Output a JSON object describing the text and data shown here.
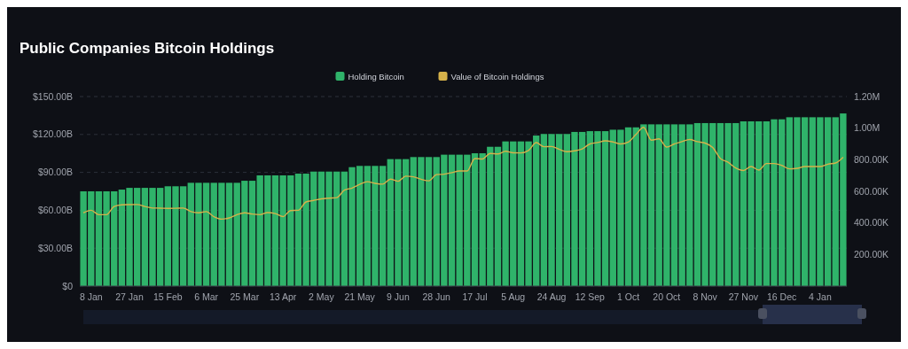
{
  "chart_data": {
    "type": "bar",
    "title": "Public Companies Bitcoin Holdings",
    "categories": [
      null,
      "8 Jan",
      null,
      null,
      null,
      null,
      "27 Jan",
      null,
      null,
      null,
      null,
      "15 Feb",
      null,
      null,
      null,
      null,
      "6 Mar",
      null,
      null,
      null,
      null,
      "25 Mar",
      null,
      null,
      null,
      null,
      "13 Apr",
      null,
      null,
      null,
      null,
      "2 May",
      null,
      null,
      null,
      null,
      "21 May",
      null,
      null,
      null,
      null,
      "9 Jun",
      null,
      null,
      null,
      null,
      "28 Jun",
      null,
      null,
      null,
      null,
      "17 Jul",
      null,
      null,
      null,
      null,
      "5 Aug",
      null,
      null,
      null,
      null,
      "24 Aug",
      null,
      null,
      null,
      null,
      "12 Sep",
      null,
      null,
      null,
      null,
      "1 Oct",
      null,
      null,
      null,
      null,
      "20 Oct",
      null,
      null,
      null,
      null,
      "8 Nov",
      null,
      null,
      null,
      null,
      "27 Nov",
      null,
      null,
      null,
      null,
      "16 Dec",
      null,
      null,
      null,
      null,
      "4 Jan",
      null,
      null,
      null
    ],
    "series": [
      {
        "name": "Holding Bitcoin",
        "color": "#2fb36a",
        "axis": "y2",
        "values": [
          600000,
          600000,
          600000,
          600000,
          600000,
          611000,
          622000,
          622000,
          622000,
          622000,
          622000,
          632000,
          632000,
          632000,
          654000,
          654000,
          654000,
          654000,
          654000,
          654000,
          654000,
          667000,
          667000,
          701000,
          701000,
          701000,
          701000,
          701000,
          712000,
          712000,
          725000,
          725000,
          725000,
          725000,
          725000,
          753000,
          761000,
          761000,
          761000,
          761000,
          804000,
          804000,
          804000,
          817000,
          817000,
          817000,
          817000,
          832000,
          832000,
          832000,
          832000,
          841000,
          841000,
          882000,
          882000,
          916000,
          916000,
          916000,
          916000,
          953000,
          963000,
          963000,
          963000,
          963000,
          976000,
          976000,
          981000,
          981000,
          981000,
          990000,
          990000,
          1005000,
          1005000,
          1024000,
          1024000,
          1024000,
          1024000,
          1024000,
          1024000,
          1024000,
          1032000,
          1032000,
          1032000,
          1032000,
          1032000,
          1032000,
          1043000,
          1043000,
          1043000,
          1043000,
          1056000,
          1056000,
          1069000,
          1069000,
          1069000,
          1069000,
          1069000,
          1069000,
          1069000,
          1093000
        ]
      },
      {
        "name": "Value of Bitcoin Holdings",
        "type": "line",
        "color": "#d6b24a",
        "values": [
          58,
          60,
          56.5,
          56.5,
          63,
          64.3,
          64.5,
          64.6,
          63,
          61.8,
          61.7,
          61.5,
          61.6,
          61.8,
          59,
          58,
          59,
          55,
          53,
          54,
          56.5,
          58,
          57,
          56.5,
          58.2,
          57.4,
          55,
          59.8,
          60,
          66.6,
          67.8,
          69,
          69.6,
          70,
          75.9,
          77.6,
          80.5,
          82.6,
          81.3,
          80.7,
          84.6,
          83,
          87,
          86.5,
          84.5,
          83.3,
          88.2,
          88.6,
          89.8,
          91.1,
          91.1,
          100.9,
          100.6,
          105,
          104.6,
          106.7,
          105.5,
          105.4,
          107.3,
          113.5,
          110.3,
          110.5,
          108.2,
          106.4,
          107.1,
          108.6,
          112.5,
          113.6,
          115,
          114.1,
          112.5,
          114,
          120,
          125.6,
          115.5,
          116.5,
          110,
          112.5,
          114.3,
          116,
          114.3,
          113.2,
          109.7,
          101,
          98,
          93.5,
          91.5,
          94.6,
          91.8,
          97,
          97,
          95.5,
          92.8,
          93.2,
          94.6,
          94.6,
          94.6,
          96.5,
          97.4,
          102
        ]
      }
    ],
    "ylim": [
      0,
      150
    ],
    "yticks": [
      {
        "value": 0,
        "label": "$0"
      },
      {
        "value": 30,
        "label": "$30.00B"
      },
      {
        "value": 60,
        "label": "$60.00B"
      },
      {
        "value": 90,
        "label": "$90.00B"
      },
      {
        "value": 120,
        "label": "$120.00B"
      },
      {
        "value": 150,
        "label": "$150.00B"
      }
    ],
    "y2lim": [
      0,
      1200000
    ],
    "y2ticks": [
      {
        "value": 200000,
        "label": "200.00K"
      },
      {
        "value": 400000,
        "label": "400.00K"
      },
      {
        "value": 600000,
        "label": "600.00K"
      },
      {
        "value": 800000,
        "label": "800.00K"
      },
      {
        "value": 1000000,
        "label": "1.00M"
      },
      {
        "value": 1200000,
        "label": "1.20M"
      }
    ],
    "grid": "y",
    "legend": "top"
  }
}
